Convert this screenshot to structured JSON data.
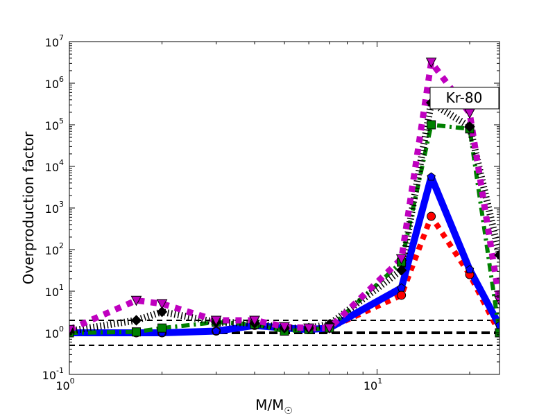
{
  "chart_data": {
    "type": "line",
    "title": "",
    "xlabel": "M/M",
    "xlabel_sub": "☉",
    "ylabel": "Overproduction factor",
    "xscale": "log",
    "yscale": "log",
    "xlim": [
      1,
      25
    ],
    "ylim": [
      0.1,
      10000000
    ],
    "x_ticks": [
      {
        "value": 1,
        "base": "10",
        "exp": "0"
      },
      {
        "value": 10,
        "base": "10",
        "exp": "1"
      }
    ],
    "y_ticks": [
      {
        "value": 0.1,
        "base": "10",
        "exp": "-1"
      },
      {
        "value": 1,
        "base": "10",
        "exp": "0"
      },
      {
        "value": 10,
        "base": "10",
        "exp": "1"
      },
      {
        "value": 100,
        "base": "10",
        "exp": "2"
      },
      {
        "value": 1000,
        "base": "10",
        "exp": "3"
      },
      {
        "value": 10000,
        "base": "10",
        "exp": "4"
      },
      {
        "value": 100000,
        "base": "10",
        "exp": "5"
      },
      {
        "value": 1000000,
        "base": "10",
        "exp": "6"
      },
      {
        "value": 10000000,
        "base": "10",
        "exp": "7"
      }
    ],
    "annotation": "Kr-80",
    "grid": false,
    "x": [
      1,
      1.65,
      2,
      3,
      4,
      5,
      6,
      7,
      12,
      15,
      20,
      25
    ],
    "series": [
      {
        "name": "red-circles",
        "color": "#ff0000",
        "style": "dotted",
        "marker": "circle",
        "values": [
          1.0,
          1.0,
          1.0,
          1.1,
          1.5,
          1.3,
          1.2,
          1.3,
          8,
          630,
          25,
          1.0
        ]
      },
      {
        "name": "blue-pentagons",
        "color": "#0000ff",
        "style": "solid",
        "marker": "pentagon",
        "values": [
          1.0,
          1.0,
          1.0,
          1.1,
          1.5,
          1.3,
          1.2,
          1.3,
          12,
          5600,
          33,
          1.5
        ]
      },
      {
        "name": "green-squares",
        "color": "#008000",
        "style": "dashdot",
        "marker": "square",
        "values": [
          1.0,
          1.05,
          1.3,
          1.8,
          1.6,
          1.1,
          1.2,
          1.3,
          50,
          100000,
          80000,
          1.0
        ]
      },
      {
        "name": "black-diamonds",
        "color": "#000000",
        "style": "dotted-thin",
        "marker": "diamond",
        "values": [
          1.1,
          2.0,
          3.2,
          1.8,
          1.7,
          1.3,
          1.3,
          1.6,
          32,
          340000,
          90000,
          74
        ]
      },
      {
        "name": "magenta-triangles",
        "color": "#bf00bf",
        "style": "dotted",
        "marker": "triangle-down",
        "values": [
          1.2,
          6.0,
          5.0,
          2.0,
          2.0,
          1.4,
          1.3,
          1.3,
          60,
          3200000,
          190000,
          6
        ]
      }
    ],
    "reference_lines": [
      {
        "value": 2,
        "style": "dashed"
      },
      {
        "value": 1,
        "style": "dashed-thick"
      },
      {
        "value": 0.5,
        "style": "dashed"
      }
    ]
  }
}
